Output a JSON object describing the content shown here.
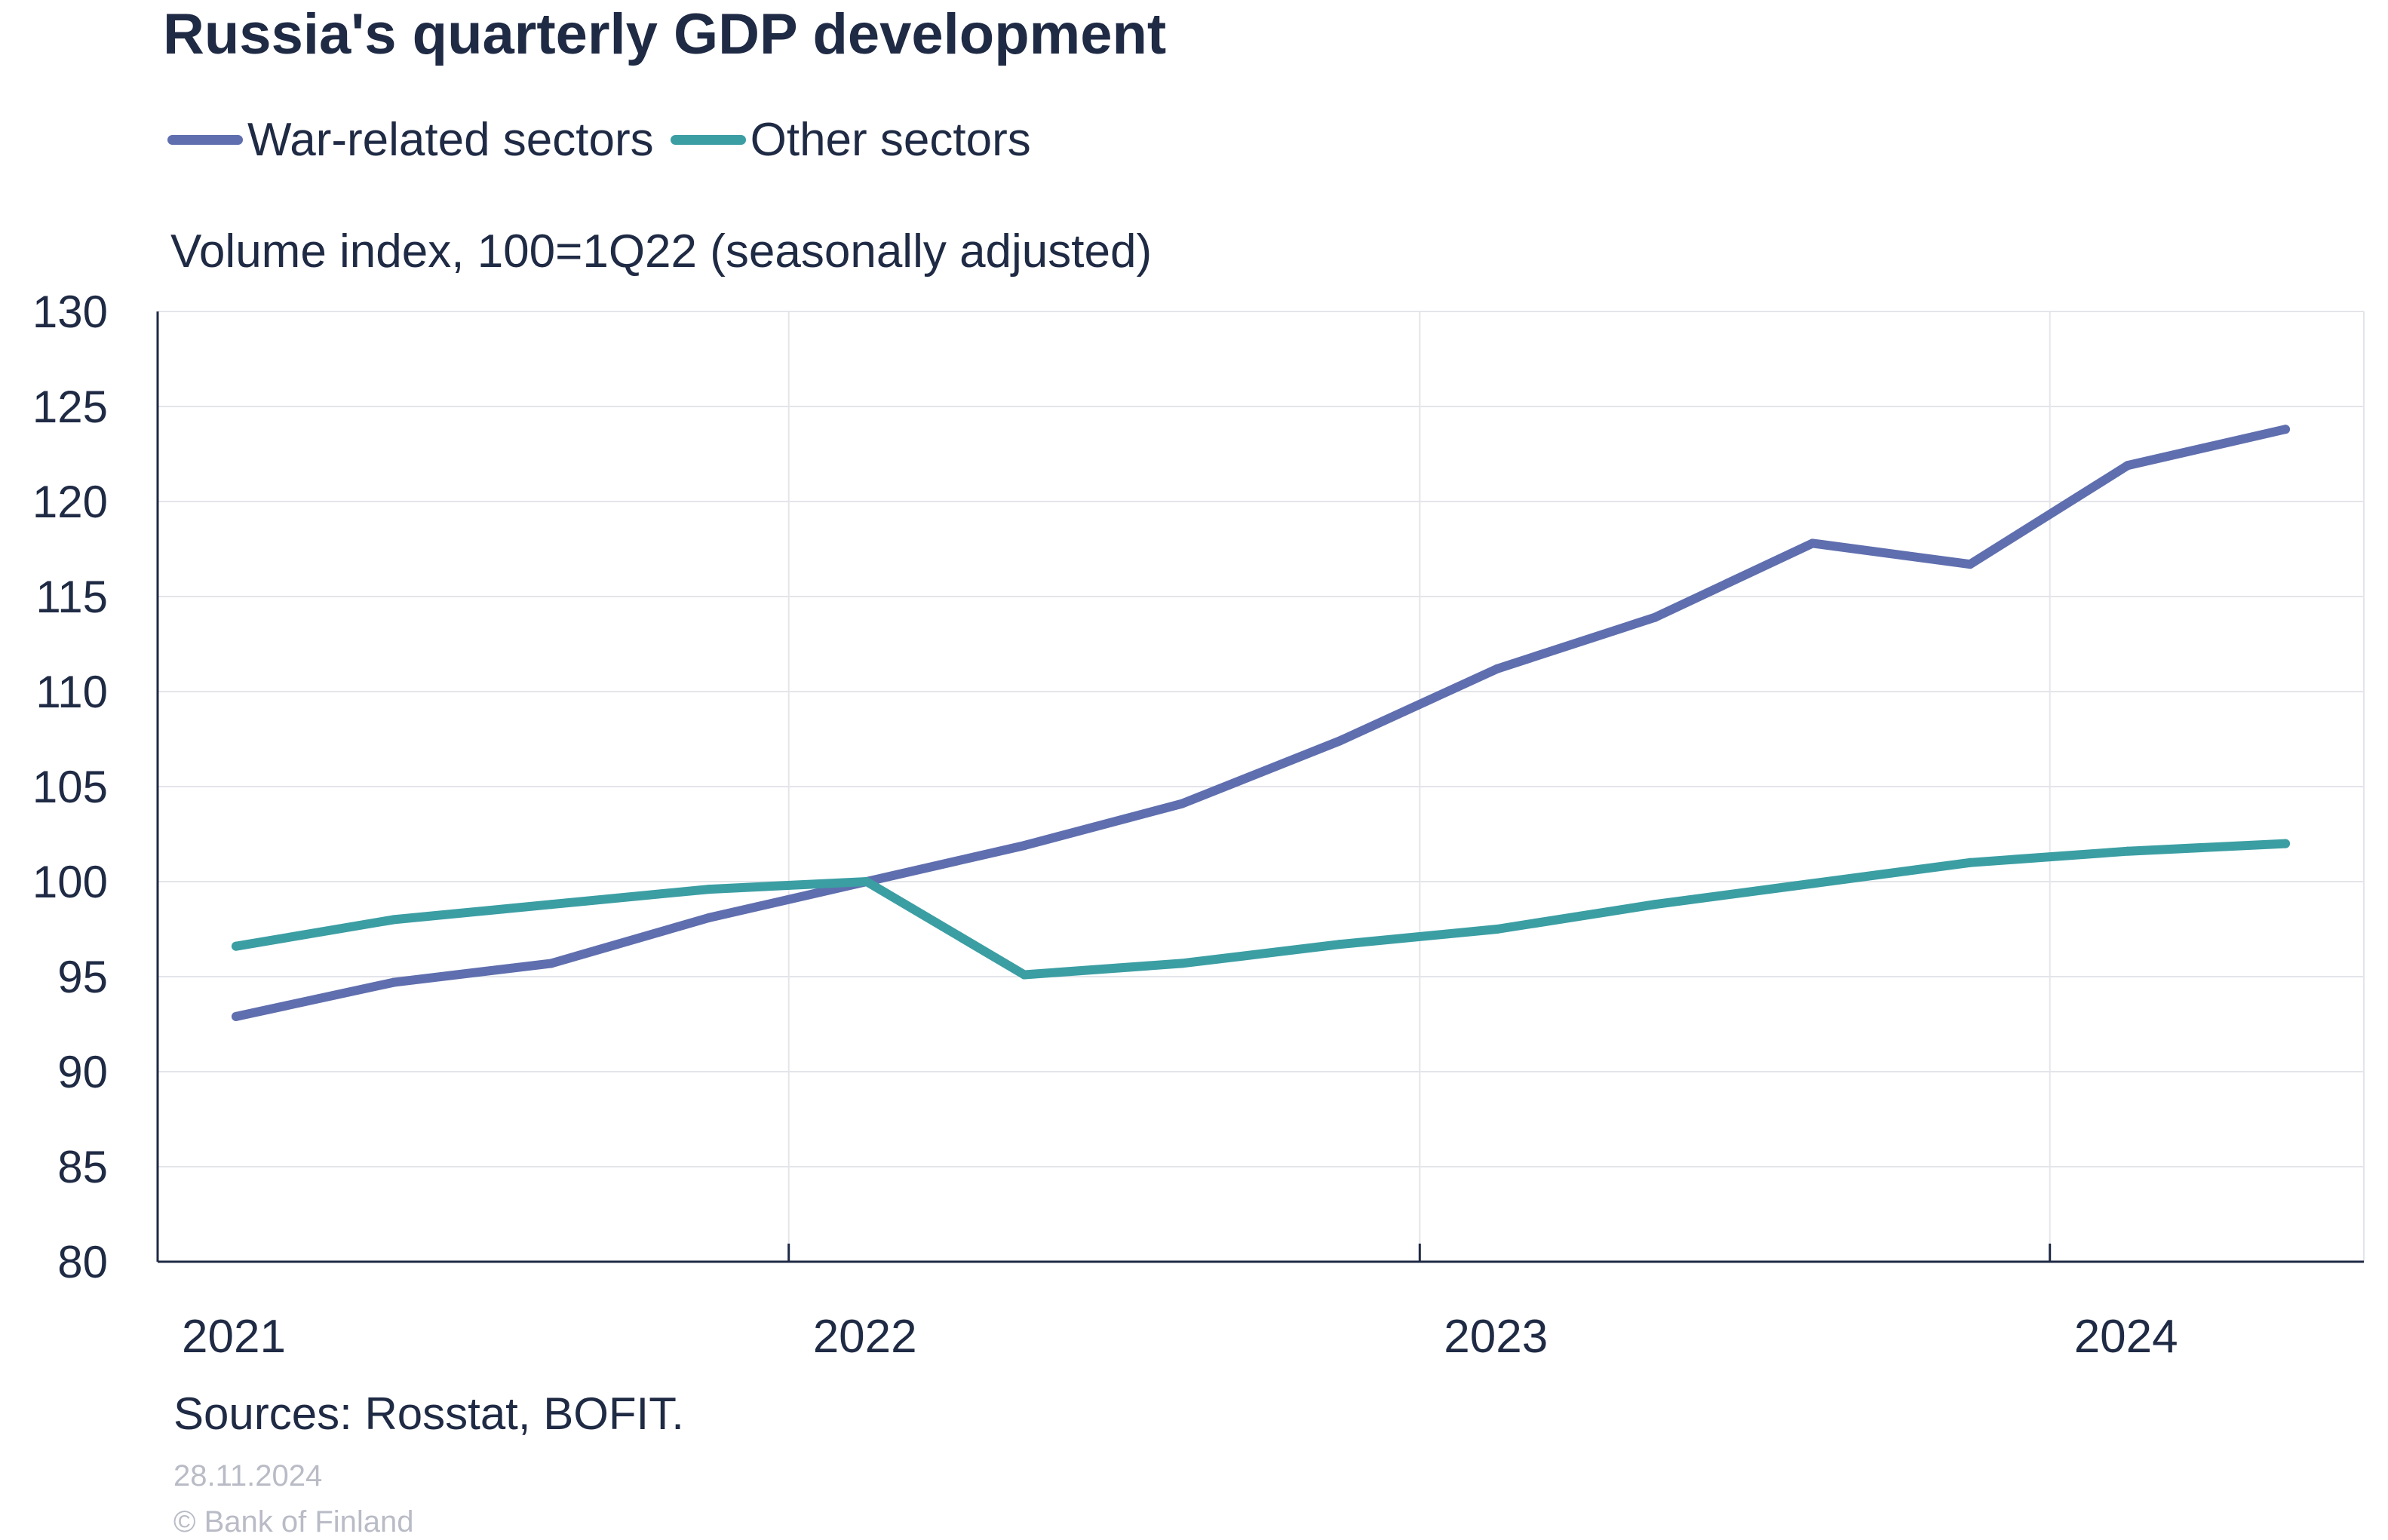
{
  "title": "Russia's quarterly GDP development",
  "subtitle": "Volume index, 100=1Q22 (seasonally adjusted)",
  "source": "Sources: Rosstat, BOFIT.",
  "date": "28.11.2024",
  "copyright": "© Bank of Finland",
  "chart_data": {
    "type": "line",
    "ylim": [
      80,
      130
    ],
    "yticks": [
      "80",
      "85",
      "90",
      "95",
      "100",
      "105",
      "110",
      "115",
      "120",
      "125",
      "130"
    ],
    "year_labels": [
      "2021",
      "2022",
      "2023",
      "2024"
    ],
    "x": [
      "1Q21",
      "2Q21",
      "3Q21",
      "4Q21",
      "1Q22",
      "2Q22",
      "3Q22",
      "4Q22",
      "1Q23",
      "2Q23",
      "3Q23",
      "4Q23",
      "1Q24",
      "2Q24"
    ],
    "grid": true,
    "legend_position": "top-left",
    "series": [
      {
        "name": "War-related sectors",
        "color": "#5f6eae",
        "values": [
          92.9,
          94.7,
          95.7,
          98.1,
          100.0,
          101.9,
          104.1,
          107.4,
          111.2,
          113.9,
          117.8,
          116.7,
          121.9,
          123.8
        ]
      },
      {
        "name": "Other sectors",
        "color": "#3b9ea3",
        "values": [
          96.6,
          98.0,
          98.8,
          99.6,
          100.0,
          95.1,
          95.7,
          96.7,
          97.5,
          98.8,
          99.9,
          101.0,
          101.6,
          102.0
        ]
      }
    ]
  }
}
